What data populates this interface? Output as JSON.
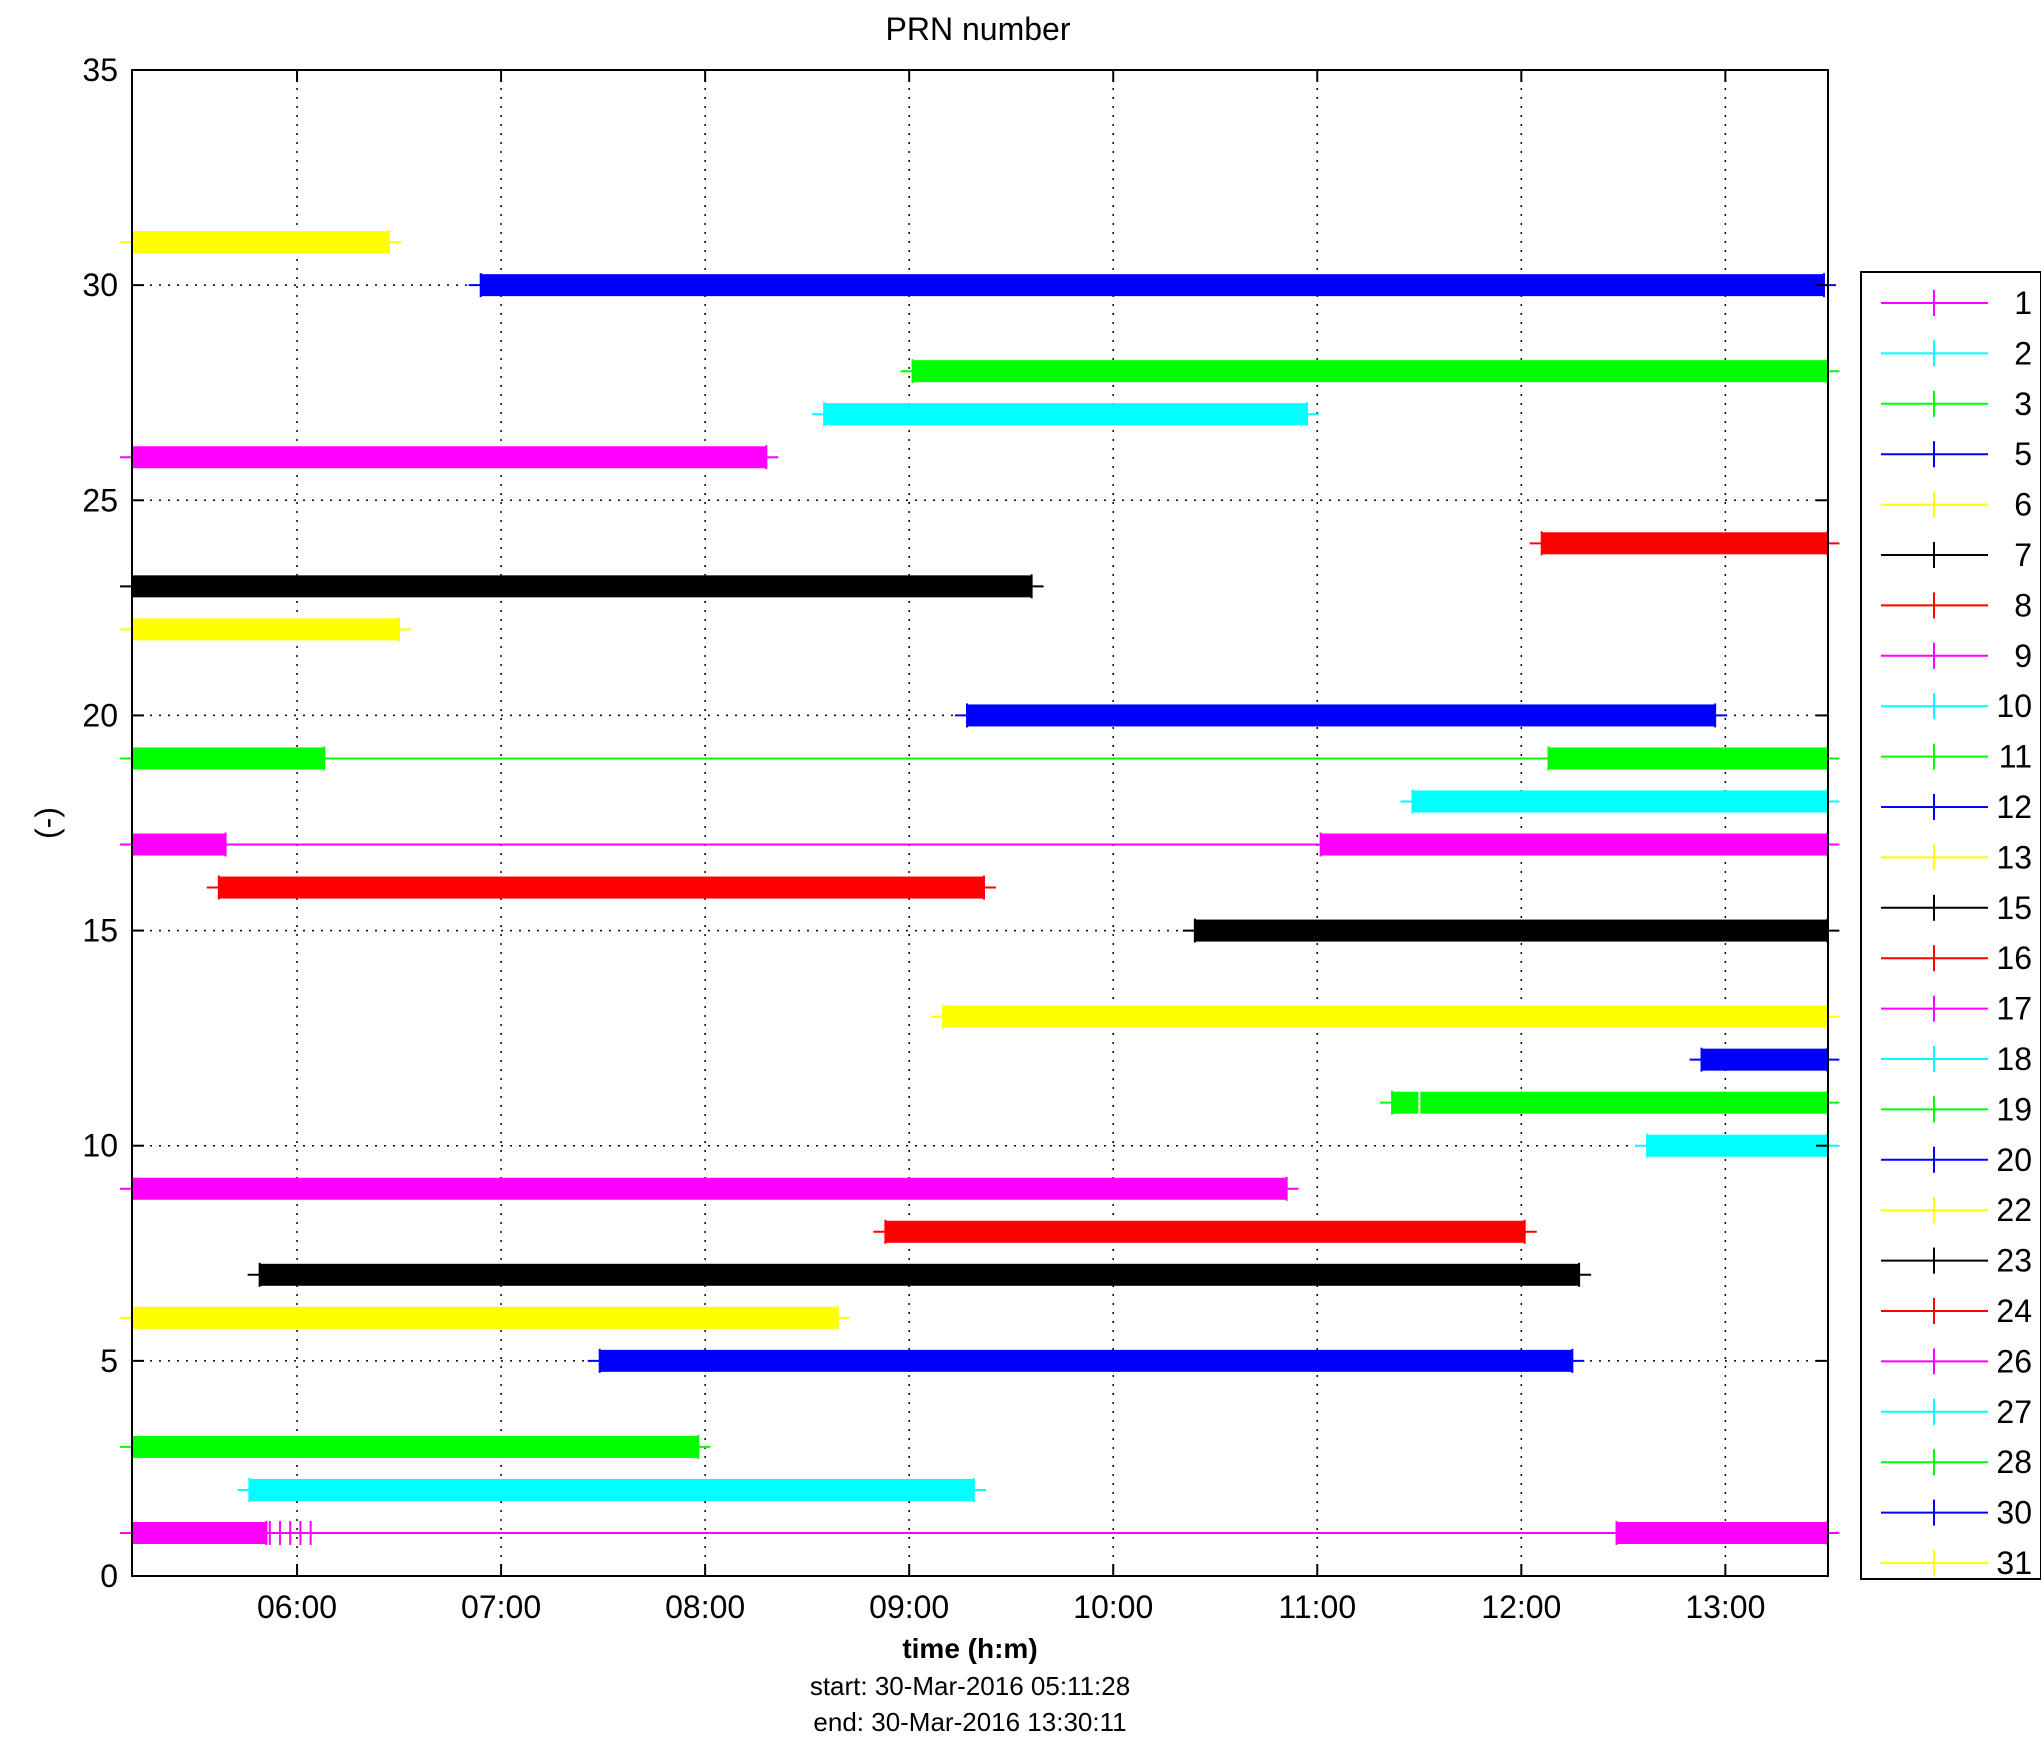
{
  "chart_data": {
    "type": "timeline",
    "title": "PRN number",
    "xlabel": "time (h:m)",
    "ylabel": "(-)",
    "start_note": "start: 30-Mar-2016 05:11:28",
    "end_note": "end: 30-Mar-2016 13:30:11",
    "x_ticks": [
      "06:00",
      "07:00",
      "08:00",
      "09:00",
      "10:00",
      "11:00",
      "12:00",
      "13:00"
    ],
    "y_ticks": [
      "0",
      "5",
      "10",
      "15",
      "20",
      "25",
      "30",
      "35"
    ],
    "xlim": [
      "05:11:28",
      "13:30:11"
    ],
    "ylim": [
      0,
      35
    ],
    "grid": true,
    "legend_position": "right-outside",
    "series": [
      {
        "name": "1",
        "color": "#ff00ff",
        "segments": [
          [
            "05:11",
            "05:51"
          ],
          [
            "12:28",
            "13:30"
          ]
        ],
        "thin": [
          [
            "05:51",
            "12:28"
          ]
        ],
        "ticks": [
          "05:52",
          "05:55",
          "05:58",
          "06:01",
          "06:04"
        ]
      },
      {
        "name": "2",
        "color": "#00ffff",
        "segments": [
          [
            "05:46",
            "09:19"
          ]
        ],
        "thin": []
      },
      {
        "name": "3",
        "color": "#00ff00",
        "segments": [
          [
            "05:11",
            "07:58"
          ]
        ],
        "thin": []
      },
      {
        "name": "5",
        "color": "#0000ff",
        "segments": [
          [
            "07:29",
            "12:15"
          ]
        ],
        "thin": []
      },
      {
        "name": "6",
        "color": "#ffff00",
        "segments": [
          [
            "05:11",
            "08:39"
          ]
        ],
        "thin": []
      },
      {
        "name": "7",
        "color": "#000000",
        "segments": [
          [
            "05:49",
            "12:17"
          ]
        ],
        "thin": []
      },
      {
        "name": "8",
        "color": "#ff0000",
        "segments": [
          [
            "08:53",
            "12:01"
          ]
        ],
        "thin": []
      },
      {
        "name": "9",
        "color": "#ff00ff",
        "segments": [
          [
            "05:11",
            "10:51"
          ]
        ],
        "thin": []
      },
      {
        "name": "10",
        "color": "#00ffff",
        "segments": [
          [
            "12:37",
            "13:30"
          ]
        ],
        "thin": []
      },
      {
        "name": "11",
        "color": "#00ff00",
        "segments": [
          [
            "11:22",
            "13:30"
          ]
        ],
        "thin": [],
        "ticks": [
          "11:30"
        ]
      },
      {
        "name": "12",
        "color": "#0000ff",
        "segments": [
          [
            "12:53",
            "13:30"
          ]
        ],
        "thin": []
      },
      {
        "name": "13",
        "color": "#ffff00",
        "segments": [
          [
            "09:10",
            "13:30"
          ]
        ],
        "thin": []
      },
      {
        "name": "15",
        "color": "#000000",
        "segments": [
          [
            "10:24",
            "13:30"
          ]
        ],
        "thin": []
      },
      {
        "name": "16",
        "color": "#ff0000",
        "segments": [
          [
            "05:37",
            "09:22"
          ]
        ],
        "thin": []
      },
      {
        "name": "17",
        "color": "#ff00ff",
        "segments": [
          [
            "05:11",
            "05:39"
          ],
          [
            "11:01",
            "13:30"
          ]
        ],
        "thin": [
          [
            "05:39",
            "11:01"
          ]
        ]
      },
      {
        "name": "18",
        "color": "#00ffff",
        "segments": [
          [
            "11:28",
            "13:30"
          ]
        ],
        "thin": []
      },
      {
        "name": "19",
        "color": "#00ff00",
        "segments": [
          [
            "05:11",
            "06:08"
          ],
          [
            "12:08",
            "13:30"
          ]
        ],
        "thin": [
          [
            "06:08",
            "12:08"
          ]
        ]
      },
      {
        "name": "20",
        "color": "#0000ff",
        "segments": [
          [
            "09:17",
            "12:57"
          ]
        ],
        "thin": []
      },
      {
        "name": "22",
        "color": "#ffff00",
        "segments": [
          [
            "05:11",
            "06:30"
          ]
        ],
        "thin": []
      },
      {
        "name": "23",
        "color": "#000000",
        "segments": [
          [
            "05:11",
            "09:36"
          ]
        ],
        "thin": []
      },
      {
        "name": "24",
        "color": "#ff0000",
        "segments": [
          [
            "12:06",
            "13:30"
          ]
        ],
        "thin": []
      },
      {
        "name": "26",
        "color": "#ff00ff",
        "segments": [
          [
            "05:11",
            "08:18"
          ]
        ],
        "thin": []
      },
      {
        "name": "27",
        "color": "#00ffff",
        "segments": [
          [
            "08:35",
            "10:57"
          ]
        ],
        "thin": []
      },
      {
        "name": "28",
        "color": "#00ff00",
        "segments": [
          [
            "09:01",
            "13:30"
          ]
        ],
        "thin": []
      },
      {
        "name": "30",
        "color": "#0000ff",
        "segments": [
          [
            "06:54",
            "13:29"
          ]
        ],
        "thin": []
      },
      {
        "name": "31",
        "color": "#ffff00",
        "segments": [
          [
            "05:11",
            "06:27"
          ]
        ],
        "thin": []
      }
    ]
  }
}
